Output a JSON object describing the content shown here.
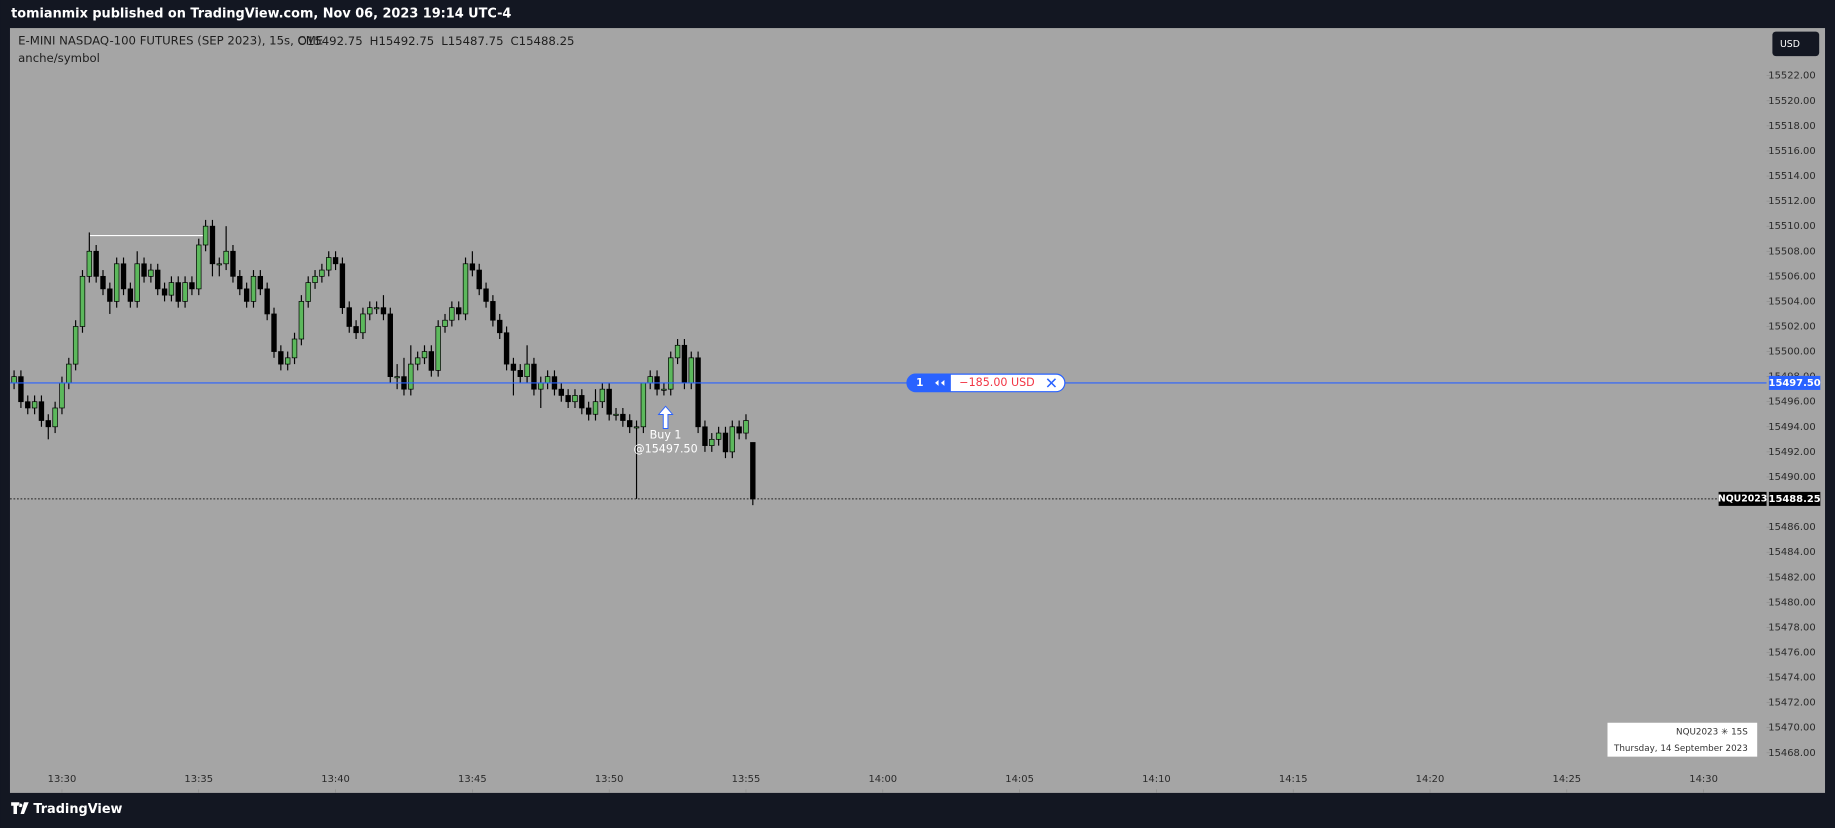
{
  "header": {
    "publisher_line": "tomianmix published on TradingView.com, Nov 06, 2023 19:14 UTC-4"
  },
  "chart_data": {
    "type": "candlestick",
    "title": "E-MINI NASDAQ-100 FUTURES (SEP 2023), 15s, CME",
    "ohlc_labels": [
      "O15492.75",
      "H15492.75",
      "L15487.75",
      "C15488.25"
    ],
    "subtitle": "anche/symbol",
    "currency_button": "USD",
    "up_color": "#5cb85c",
    "down_color": "#000000",
    "candles": [
      {
        "x": 808.25,
        "open": 15497.5,
        "high": 15498.5,
        "low": 15497,
        "close": 15498
      },
      {
        "x": 808.5,
        "open": 15498,
        "high": 15498.5,
        "low": 15495.5,
        "close": 15496
      },
      {
        "x": 808.75,
        "open": 15496,
        "high": 15496.5,
        "low": 15495,
        "close": 15495.5
      },
      {
        "x": 809,
        "open": 15495.5,
        "high": 15496.5,
        "low": 15495,
        "close": 15496
      },
      {
        "x": 809.25,
        "open": 15496,
        "high": 15496.5,
        "low": 15494,
        "close": 15494.5
      },
      {
        "x": 809.5,
        "open": 15494.5,
        "high": 15495,
        "low": 15493,
        "close": 15494
      },
      {
        "x": 809.75,
        "open": 15494,
        "high": 15496,
        "low": 15493.5,
        "close": 15495.5
      },
      {
        "x": 810,
        "open": 15495.5,
        "high": 15498,
        "low": 15495,
        "close": 15497.5
      },
      {
        "x": 810.25,
        "open": 15497.5,
        "high": 15499.5,
        "low": 15497,
        "close": 15499
      },
      {
        "x": 810.5,
        "open": 15499,
        "high": 15502.5,
        "low": 15498.5,
        "close": 15502
      },
      {
        "x": 810.75,
        "open": 15502,
        "high": 15506.5,
        "low": 15501.5,
        "close": 15506
      },
      {
        "x": 811,
        "open": 15506,
        "high": 15509.5,
        "low": 15505.5,
        "close": 15508
      },
      {
        "x": 811.25,
        "open": 15508,
        "high": 15508.5,
        "low": 15505.5,
        "close": 15506
      },
      {
        "x": 811.5,
        "open": 15506,
        "high": 15506.5,
        "low": 15504.5,
        "close": 15505
      },
      {
        "x": 811.75,
        "open": 15505,
        "high": 15505.5,
        "low": 15503,
        "close": 15504
      },
      {
        "x": 812,
        "open": 15504,
        "high": 15507.5,
        "low": 15503.5,
        "close": 15507
      },
      {
        "x": 812.25,
        "open": 15507,
        "high": 15507.5,
        "low": 15504.5,
        "close": 15505
      },
      {
        "x": 812.5,
        "open": 15505,
        "high": 15505.5,
        "low": 15503.5,
        "close": 15504
      },
      {
        "x": 812.75,
        "open": 15504,
        "high": 15508,
        "low": 15503.5,
        "close": 15507
      },
      {
        "x": 813,
        "open": 15507,
        "high": 15507.5,
        "low": 15505.5,
        "close": 15506
      },
      {
        "x": 813.25,
        "open": 15506,
        "high": 15507,
        "low": 15505.5,
        "close": 15506.5
      },
      {
        "x": 813.5,
        "open": 15506.5,
        "high": 15507,
        "low": 15504.5,
        "close": 15505
      },
      {
        "x": 813.75,
        "open": 15505,
        "high": 15505.5,
        "low": 15504,
        "close": 15504.5
      },
      {
        "x": 814,
        "open": 15504.5,
        "high": 15506,
        "low": 15504,
        "close": 15505.5
      },
      {
        "x": 814.25,
        "open": 15505.5,
        "high": 15506,
        "low": 15503.5,
        "close": 15504
      },
      {
        "x": 814.5,
        "open": 15504,
        "high": 15506,
        "low": 15503.5,
        "close": 15505.5
      },
      {
        "x": 814.75,
        "open": 15505.5,
        "high": 15506,
        "low": 15504.5,
        "close": 15505
      },
      {
        "x": 815,
        "open": 15505,
        "high": 15509,
        "low": 15504.5,
        "close": 15508.5
      },
      {
        "x": 815.25,
        "open": 15508.5,
        "high": 15510.5,
        "low": 15508,
        "close": 15510
      },
      {
        "x": 815.5,
        "open": 15510,
        "high": 15510.5,
        "low": 15506,
        "close": 15507
      },
      {
        "x": 815.75,
        "open": 15507,
        "high": 15507.5,
        "low": 15506,
        "close": 15507
      },
      {
        "x": 816,
        "open": 15507,
        "high": 15510,
        "low": 15506.5,
        "close": 15508
      },
      {
        "x": 816.25,
        "open": 15508,
        "high": 15508.5,
        "low": 15505.5,
        "close": 15506
      },
      {
        "x": 816.5,
        "open": 15506,
        "high": 15506.5,
        "low": 15504.5,
        "close": 15505
      },
      {
        "x": 816.75,
        "open": 15505,
        "high": 15505.5,
        "low": 15503.5,
        "close": 15504
      },
      {
        "x": 817,
        "open": 15504,
        "high": 15506.5,
        "low": 15503.5,
        "close": 15506
      },
      {
        "x": 817.25,
        "open": 15506,
        "high": 15506.5,
        "low": 15504.5,
        "close": 15505
      },
      {
        "x": 817.5,
        "open": 15505,
        "high": 15505.5,
        "low": 15502.5,
        "close": 15503
      },
      {
        "x": 817.75,
        "open": 15503,
        "high": 15503.5,
        "low": 15499.5,
        "close": 15500
      },
      {
        "x": 818,
        "open": 15500,
        "high": 15500.5,
        "low": 15498.5,
        "close": 15499
      },
      {
        "x": 818.25,
        "open": 15499,
        "high": 15500,
        "low": 15498.5,
        "close": 15499.5
      },
      {
        "x": 818.5,
        "open": 15499.5,
        "high": 15501.5,
        "low": 15499,
        "close": 15501
      },
      {
        "x": 818.75,
        "open": 15501,
        "high": 15504.5,
        "low": 15500.5,
        "close": 15504
      },
      {
        "x": 819,
        "open": 15504,
        "high": 15506,
        "low": 15503.5,
        "close": 15505.5
      },
      {
        "x": 819.25,
        "open": 15505.5,
        "high": 15506.5,
        "low": 15505,
        "close": 15506
      },
      {
        "x": 819.5,
        "open": 15506,
        "high": 15507,
        "low": 15505.5,
        "close": 15506.5
      },
      {
        "x": 819.75,
        "open": 15506.5,
        "high": 15508,
        "low": 15506,
        "close": 15507.5
      },
      {
        "x": 820,
        "open": 15507.5,
        "high": 15508,
        "low": 15506.5,
        "close": 15507
      },
      {
        "x": 820.25,
        "open": 15507,
        "high": 15507.5,
        "low": 15503,
        "close": 15503.5
      },
      {
        "x": 820.5,
        "open": 15503.5,
        "high": 15504,
        "low": 15501.5,
        "close": 15502
      },
      {
        "x": 820.75,
        "open": 15502,
        "high": 15502.5,
        "low": 15501,
        "close": 15501.5
      },
      {
        "x": 821,
        "open": 15501.5,
        "high": 15503.5,
        "low": 15501,
        "close": 15503
      },
      {
        "x": 821.25,
        "open": 15503,
        "high": 15504,
        "low": 15502.5,
        "close": 15503.5
      },
      {
        "x": 821.5,
        "open": 15503.5,
        "high": 15504,
        "low": 15503,
        "close": 15503.5
      },
      {
        "x": 821.75,
        "open": 15503.5,
        "high": 15504.5,
        "low": 15502.5,
        "close": 15503
      },
      {
        "x": 822,
        "open": 15503,
        "high": 15503.5,
        "low": 15497.5,
        "close": 15498
      },
      {
        "x": 822.25,
        "open": 15498,
        "high": 15499,
        "low": 15497,
        "close": 15498
      },
      {
        "x": 822.5,
        "open": 15498,
        "high": 15499.5,
        "low": 15496.5,
        "close": 15497
      },
      {
        "x": 822.75,
        "open": 15497,
        "high": 15500.5,
        "low": 15496.5,
        "close": 15499
      },
      {
        "x": 823,
        "open": 15499,
        "high": 15500,
        "low": 15498.5,
        "close": 15499.5
      },
      {
        "x": 823.25,
        "open": 15499.5,
        "high": 15500.5,
        "low": 15499,
        "close": 15500
      },
      {
        "x": 823.5,
        "open": 15500,
        "high": 15500.5,
        "low": 15498,
        "close": 15498.5
      },
      {
        "x": 823.75,
        "open": 15498.5,
        "high": 15502.5,
        "low": 15498,
        "close": 15502
      },
      {
        "x": 824,
        "open": 15502,
        "high": 15503,
        "low": 15501.5,
        "close": 15502.5
      },
      {
        "x": 824.25,
        "open": 15502.5,
        "high": 15504,
        "low": 15502,
        "close": 15503.5
      },
      {
        "x": 824.5,
        "open": 15503.5,
        "high": 15504,
        "low": 15502.5,
        "close": 15503
      },
      {
        "x": 824.75,
        "open": 15503,
        "high": 15507.5,
        "low": 15502.5,
        "close": 15507
      },
      {
        "x": 825,
        "open": 15507,
        "high": 15508,
        "low": 15506,
        "close": 15506.5
      },
      {
        "x": 825.25,
        "open": 15506.5,
        "high": 15507,
        "low": 15504.5,
        "close": 15505
      },
      {
        "x": 825.5,
        "open": 15505,
        "high": 15505.5,
        "low": 15503.5,
        "close": 15504
      },
      {
        "x": 825.75,
        "open": 15504,
        "high": 15504.5,
        "low": 15502,
        "close": 15502.5
      },
      {
        "x": 826,
        "open": 15502.5,
        "high": 15503,
        "low": 15501,
        "close": 15501.5
      },
      {
        "x": 826.25,
        "open": 15501.5,
        "high": 15502,
        "low": 15498.5,
        "close": 15499
      },
      {
        "x": 826.5,
        "open": 15499,
        "high": 15499.5,
        "low": 15496.5,
        "close": 15498.5
      },
      {
        "x": 826.75,
        "open": 15498.5,
        "high": 15499,
        "low": 15497.5,
        "close": 15498
      },
      {
        "x": 827,
        "open": 15498,
        "high": 15500.5,
        "low": 15497.5,
        "close": 15499
      },
      {
        "x": 827.25,
        "open": 15499,
        "high": 15499.5,
        "low": 15496.5,
        "close": 15497
      },
      {
        "x": 827.5,
        "open": 15497,
        "high": 15498,
        "low": 15495.5,
        "close": 15497.5
      },
      {
        "x": 827.75,
        "open": 15497.5,
        "high": 15498.5,
        "low": 15497,
        "close": 15498
      },
      {
        "x": 828,
        "open": 15498,
        "high": 15498.5,
        "low": 15496.5,
        "close": 15497
      },
      {
        "x": 828.25,
        "open": 15497,
        "high": 15497.5,
        "low": 15496,
        "close": 15496.5
      },
      {
        "x": 828.5,
        "open": 15496.5,
        "high": 15497,
        "low": 15495.5,
        "close": 15496
      },
      {
        "x": 828.75,
        "open": 15496,
        "high": 15497,
        "low": 15495.5,
        "close": 15496.5
      },
      {
        "x": 829,
        "open": 15496.5,
        "high": 15497,
        "low": 15495,
        "close": 15495.5
      },
      {
        "x": 829.25,
        "open": 15495.5,
        "high": 15496,
        "low": 15494.5,
        "close": 15495
      },
      {
        "x": 829.5,
        "open": 15495,
        "high": 15497,
        "low": 15494.5,
        "close": 15496
      },
      {
        "x": 829.75,
        "open": 15496,
        "high": 15497.5,
        "low": 15495.5,
        "close": 15497
      },
      {
        "x": 830,
        "open": 15497,
        "high": 15497.5,
        "low": 15494.5,
        "close": 15495
      },
      {
        "x": 830.25,
        "open": 15495,
        "high": 15495.5,
        "low": 15494.5,
        "close": 15495
      },
      {
        "x": 830.5,
        "open": 15495,
        "high": 15495.5,
        "low": 15494,
        "close": 15494.5
      },
      {
        "x": 830.75,
        "open": 15494.5,
        "high": 15495,
        "low": 15493.5,
        "close": 15494
      },
      {
        "x": 831,
        "open": 15494,
        "high": 15494.5,
        "low": 15488.25,
        "close": 15494
      },
      {
        "x": 831.25,
        "open": 15494,
        "high": 15497.5,
        "low": 15493.5,
        "close": 15497.5
      },
      {
        "x": 831.5,
        "open": 15497.5,
        "high": 15498.5,
        "low": 15497,
        "close": 15498
      },
      {
        "x": 831.75,
        "open": 15498,
        "high": 15498.5,
        "low": 15496.5,
        "close": 15497
      },
      {
        "x": 832,
        "open": 15497,
        "high": 15497.5,
        "low": 15496.5,
        "close": 15497
      },
      {
        "x": 832.25,
        "open": 15497,
        "high": 15500,
        "low": 15496.5,
        "close": 15499.5
      },
      {
        "x": 832.5,
        "open": 15499.5,
        "high": 15501,
        "low": 15499,
        "close": 15500.5
      },
      {
        "x": 832.75,
        "open": 15500.5,
        "high": 15501,
        "low": 15497,
        "close": 15497.5
      },
      {
        "x": 833,
        "open": 15497.5,
        "high": 15500,
        "low": 15497,
        "close": 15499.5
      },
      {
        "x": 833.25,
        "open": 15499.5,
        "high": 15500,
        "low": 15493.5,
        "close": 15494
      },
      {
        "x": 833.5,
        "open": 15494,
        "high": 15494.5,
        "low": 15492,
        "close": 15492.5
      },
      {
        "x": 833.75,
        "open": 15492.5,
        "high": 15493.5,
        "low": 15492,
        "close": 15493
      },
      {
        "x": 834,
        "open": 15493,
        "high": 15494,
        "low": 15492.5,
        "close": 15493.5
      },
      {
        "x": 834.25,
        "open": 15493.5,
        "high": 15494,
        "low": 15491.5,
        "close": 15492
      },
      {
        "x": 834.5,
        "open": 15492,
        "high": 15494.5,
        "low": 15491.5,
        "close": 15494
      },
      {
        "x": 834.75,
        "open": 15494,
        "high": 15494.5,
        "low": 15493,
        "close": 15493.5
      },
      {
        "x": 835,
        "open": 15493.5,
        "high": 15495,
        "low": 15493,
        "close": 15494.5
      },
      {
        "x": 835.25,
        "open": 15492.75,
        "high": 15492.75,
        "low": 15487.75,
        "close": 15488.25
      }
    ],
    "xlim": [
      808.1,
      872.3
    ],
    "xticks": [
      {
        "value": 810,
        "label": "13:30"
      },
      {
        "value": 815,
        "label": "13:35"
      },
      {
        "value": 820,
        "label": "13:40"
      },
      {
        "value": 825,
        "label": "13:45"
      },
      {
        "value": 830,
        "label": "13:50"
      },
      {
        "value": 835,
        "label": "13:55"
      },
      {
        "value": 840,
        "label": "14:00"
      },
      {
        "value": 845,
        "label": "14:05"
      },
      {
        "value": 850,
        "label": "14:10"
      },
      {
        "value": 855,
        "label": "14:15"
      },
      {
        "value": 860,
        "label": "14:20"
      },
      {
        "value": 865,
        "label": "14:25"
      },
      {
        "value": 870,
        "label": "14:30"
      }
    ],
    "ylim": [
      15464.8,
      15525.8
    ],
    "yticks": [
      {
        "value": 15468,
        "label": "15468.00"
      },
      {
        "value": 15470,
        "label": "15470.00"
      },
      {
        "value": 15472,
        "label": "15472.00"
      },
      {
        "value": 15474,
        "label": "15474.00"
      },
      {
        "value": 15476,
        "label": "15476.00"
      },
      {
        "value": 15478,
        "label": "15478.00"
      },
      {
        "value": 15480,
        "label": "15480.00"
      },
      {
        "value": 15482,
        "label": "15482.00"
      },
      {
        "value": 15484,
        "label": "15484.00"
      },
      {
        "value": 15486,
        "label": "15486.00"
      },
      {
        "value": 15490,
        "label": "15490.00"
      },
      {
        "value": 15492,
        "label": "15492.00"
      },
      {
        "value": 15494,
        "label": "15494.00"
      },
      {
        "value": 15496,
        "label": "15496.00"
      },
      {
        "value": 15498,
        "label": "15498.00"
      },
      {
        "value": 15500,
        "label": "15500.00"
      },
      {
        "value": 15502,
        "label": "15502.00"
      },
      {
        "value": 15504,
        "label": "15504.00"
      },
      {
        "value": 15506,
        "label": "15506.00"
      },
      {
        "value": 15508,
        "label": "15508.00"
      },
      {
        "value": 15510,
        "label": "15510.00"
      },
      {
        "value": 15512,
        "label": "15512.00"
      },
      {
        "value": 15514,
        "label": "15514.00"
      },
      {
        "value": 15516,
        "label": "15516.00"
      },
      {
        "value": 15518,
        "label": "15518.00"
      },
      {
        "value": 15520,
        "label": "15520.00"
      },
      {
        "value": 15522,
        "label": "15522.00"
      }
    ],
    "position": {
      "quantity": 1,
      "pnl": "−185.00 USD",
      "price": 15497.5,
      "price_label": "15497.50",
      "color": "#2962ff"
    },
    "last_price": {
      "symbol": "NQU2023",
      "price": 15488.25,
      "price_label": "15488.25"
    },
    "trade_marker": {
      "label": "Buy 1",
      "price_label": "@15497.50",
      "x": 831.25,
      "price": 15497.5
    },
    "drawing": {
      "x": [
        811,
        815.25
      ],
      "y": [
        15509.25,
        15509.25
      ]
    },
    "info_box": {
      "symbol": "NQU2023 ✳ 15S",
      "date": "Thursday, 14 September 2023"
    }
  },
  "footer": {
    "brand": "TradingView"
  }
}
